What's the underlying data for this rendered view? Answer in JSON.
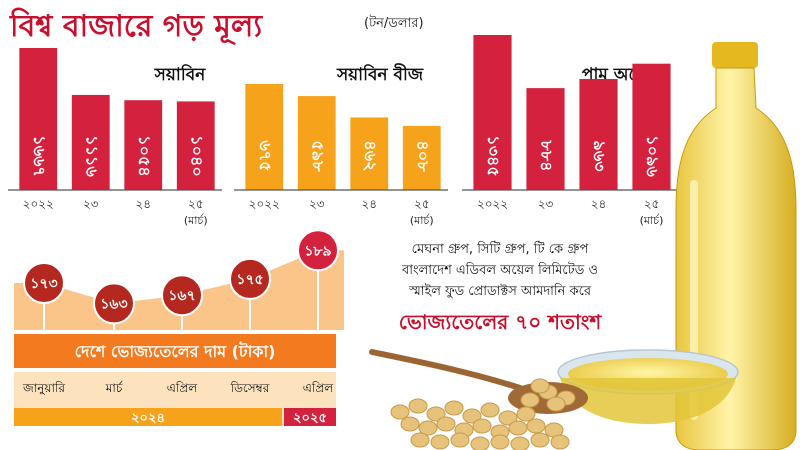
{
  "title": "বিশ্ব বাজারে গড় মূল্য",
  "unit": "(টন/ডলার)",
  "chart_data": [
    {
      "type": "bar",
      "title": "সয়াবিন",
      "categories": [
        "২০২২",
        "২৩",
        "২৪",
        "২৫"
      ],
      "category_note": "(মার্চ)",
      "values": [
        1667,
        1116,
        1054,
        1040
      ],
      "value_labels": [
        "১৬৬৭",
        "১১১৬",
        "১০৫৪",
        "১০৪০"
      ],
      "color": "#d4213d"
    },
    {
      "type": "bar",
      "title": "সয়াবিন বীজ",
      "categories": [
        "২০২২",
        "২৩",
        "২৪",
        "২৫"
      ],
      "category_note": "(মার্চ)",
      "values": [
        675,
        598,
        462,
        408
      ],
      "value_labels": [
        "৬৭৫",
        "৫৯৮",
        "৪৬২",
        "৪০৮"
      ],
      "color": "#f7a21b"
    },
    {
      "type": "bar",
      "title": "পাম অয়েল",
      "categories": [
        "২০২২",
        "২৩",
        "২৪",
        "২৫"
      ],
      "category_note": "(মার্চ)",
      "values": [
        1345,
        884,
        963,
        1096
      ],
      "value_labels": [
        "১৩৪৫",
        "৮৮৪",
        "৯৬৩",
        "১০৯৬"
      ],
      "color": "#d4213d"
    },
    {
      "type": "area",
      "title": "দেশে ভোজ্যতেলের দাম (টাকা)",
      "categories": [
        "জানুয়ারি",
        "মার্চ",
        "এপ্রিল",
        "ডিসেম্বর",
        "এপ্রিল"
      ],
      "year_groups": [
        {
          "label": "২০২৪",
          "span": 4,
          "color": "#f7a21b"
        },
        {
          "label": "২০২৫",
          "span": 1,
          "color": "#d4213d"
        }
      ],
      "values": [
        173,
        163,
        167,
        175,
        189
      ],
      "value_labels": [
        "১৭৩",
        "১৬৩",
        "১৬৭",
        "১৭৫",
        "১৮৯"
      ]
    }
  ],
  "note": {
    "line1": "মেঘনা গ্রুপ, সিটি গ্রুপ, টি কে গ্রুপ",
    "line2": "বাংলাদেশ এডিবল অয়েল লিমিটেড ও",
    "line3": "স্মাইল ফুড প্রোডাক্টস আমদানি করে",
    "highlight": "ভোজ্যতেলের ৭০ শতাংশ"
  },
  "colors": {
    "red": "#d4213d",
    "orange": "#f7a21b",
    "axis": "#555555"
  }
}
